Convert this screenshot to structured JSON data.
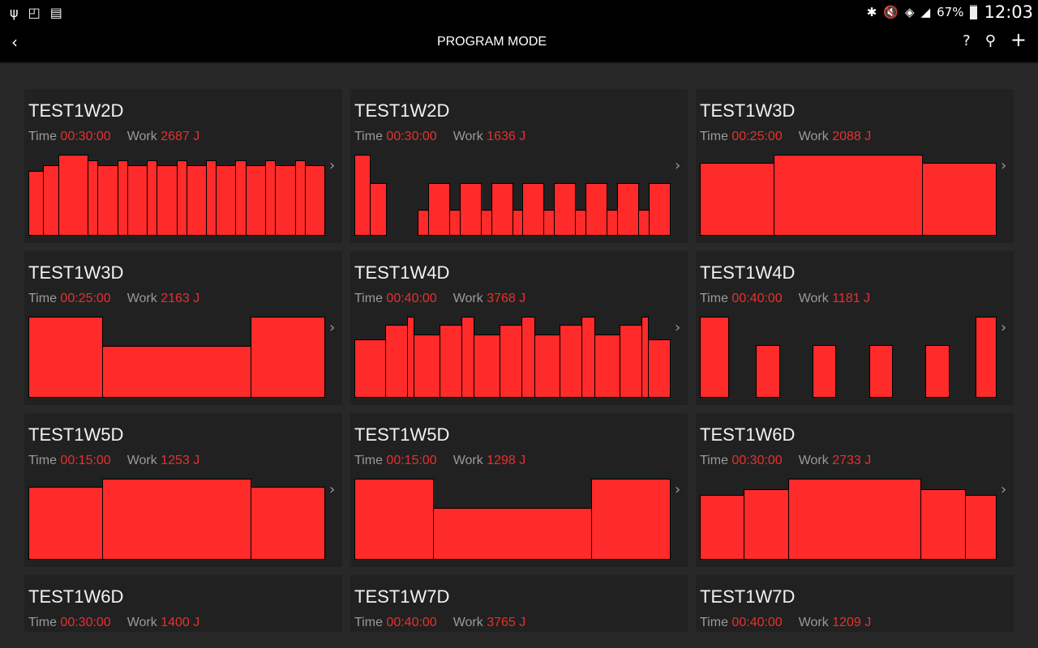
{
  "status_bar": {
    "left_icons": [
      "usb-icon",
      "cast-screen-icon",
      "sim-missing-icon"
    ],
    "right_icons": [
      "bluetooth-icon",
      "mute-icon",
      "wifi-icon",
      "signal-icon"
    ],
    "battery": "67%",
    "time": "12:03"
  },
  "action_bar": {
    "back_icon": "chevron-left-icon",
    "title": "PROGRAM MODE",
    "help": "?",
    "search_icon": "search-icon",
    "add": "+"
  },
  "labels": {
    "time": "Time",
    "work": "Work"
  },
  "colors": {
    "accent": "#e8302e",
    "bar": "#ff2a2a",
    "card": "#212121",
    "background": "#282828"
  },
  "programs": [
    {
      "name": "TEST1W2D",
      "time": "00:30:00",
      "work": "2687 J",
      "profile": [
        [
          3,
          0.8
        ],
        [
          3,
          0.87
        ],
        [
          6,
          1
        ],
        [
          2,
          0.93
        ],
        [
          4,
          0.87
        ],
        [
          2,
          0.93
        ],
        [
          4,
          0.87
        ],
        [
          2,
          0.93
        ],
        [
          4,
          0.87
        ],
        [
          2,
          0.93
        ],
        [
          4,
          0.87
        ],
        [
          2,
          0.93
        ],
        [
          4,
          0.87
        ],
        [
          2,
          0.93
        ],
        [
          4,
          0.87
        ],
        [
          2,
          0.93
        ],
        [
          4,
          0.87
        ],
        [
          2,
          0.93
        ],
        [
          4,
          0.87
        ]
      ]
    },
    {
      "name": "TEST1W2D",
      "time": "00:30:00",
      "work": "1636 J",
      "profile": [
        [
          3,
          1
        ],
        [
          3,
          0.65
        ],
        [
          6,
          0
        ],
        [
          2,
          0.32
        ],
        [
          4,
          0.65
        ],
        [
          2,
          0.32
        ],
        [
          4,
          0.65
        ],
        [
          2,
          0.32
        ],
        [
          4,
          0.65
        ],
        [
          2,
          0.32
        ],
        [
          4,
          0.65
        ],
        [
          2,
          0.32
        ],
        [
          4,
          0.65
        ],
        [
          2,
          0.32
        ],
        [
          4,
          0.65
        ],
        [
          2,
          0.32
        ],
        [
          4,
          0.65
        ],
        [
          2,
          0.32
        ],
        [
          4,
          0.65
        ]
      ]
    },
    {
      "name": "TEST1W3D",
      "time": "00:25:00",
      "work": "2088 J",
      "profile": [
        [
          1,
          0.9
        ],
        [
          2,
          1
        ],
        [
          1,
          0.9
        ]
      ]
    },
    {
      "name": "TEST1W3D",
      "time": "00:25:00",
      "work": "2163 J",
      "profile": [
        [
          1,
          1
        ],
        [
          2,
          0.64
        ],
        [
          1,
          1
        ]
      ]
    },
    {
      "name": "TEST1W4D",
      "time": "00:40:00",
      "work": "3768 J",
      "profile": [
        [
          115,
          0.72
        ],
        [
          81,
          0.9
        ],
        [
          23,
          1
        ],
        [
          94,
          0.78
        ],
        [
          81,
          0.9
        ],
        [
          47,
          1
        ],
        [
          94,
          0.78
        ],
        [
          81,
          0.9
        ],
        [
          48,
          1
        ],
        [
          93,
          0.78
        ],
        [
          81,
          0.9
        ],
        [
          48,
          1
        ],
        [
          93,
          0.78
        ],
        [
          81,
          0.9
        ],
        [
          24,
          1
        ],
        [
          81,
          0.72
        ]
      ]
    },
    {
      "name": "TEST1W4D",
      "time": "00:40:00",
      "work": "1181 J",
      "profile": [
        [
          105,
          1
        ],
        [
          102,
          0
        ],
        [
          87,
          0.65
        ],
        [
          123,
          0
        ],
        [
          84,
          0.65
        ],
        [
          124,
          0
        ],
        [
          83,
          0.65
        ],
        [
          124,
          0
        ],
        [
          86,
          0.65
        ],
        [
          99,
          0
        ],
        [
          75,
          1
        ]
      ]
    },
    {
      "name": "TEST1W5D",
      "time": "00:15:00",
      "work": "1253 J",
      "profile": [
        [
          1,
          0.9
        ],
        [
          2,
          1
        ],
        [
          1,
          0.9
        ]
      ]
    },
    {
      "name": "TEST1W5D",
      "time": "00:15:00",
      "work": "1298 J",
      "profile": [
        [
          1,
          1
        ],
        [
          2,
          0.64
        ],
        [
          1,
          1
        ]
      ]
    },
    {
      "name": "TEST1W6D",
      "time": "00:30:00",
      "work": "2733 J",
      "profile": [
        [
          1,
          0.8
        ],
        [
          1,
          0.87
        ],
        [
          3,
          1
        ],
        [
          1,
          0.87
        ],
        [
          0.7,
          0.8
        ]
      ]
    },
    {
      "name": "TEST1W6D",
      "time": "00:30:00",
      "work": "1400 J",
      "profile": []
    },
    {
      "name": "TEST1W7D",
      "time": "00:40:00",
      "work": "3765 J",
      "profile": []
    },
    {
      "name": "TEST1W7D",
      "time": "00:40:00",
      "work": "1209 J",
      "profile": []
    }
  ]
}
